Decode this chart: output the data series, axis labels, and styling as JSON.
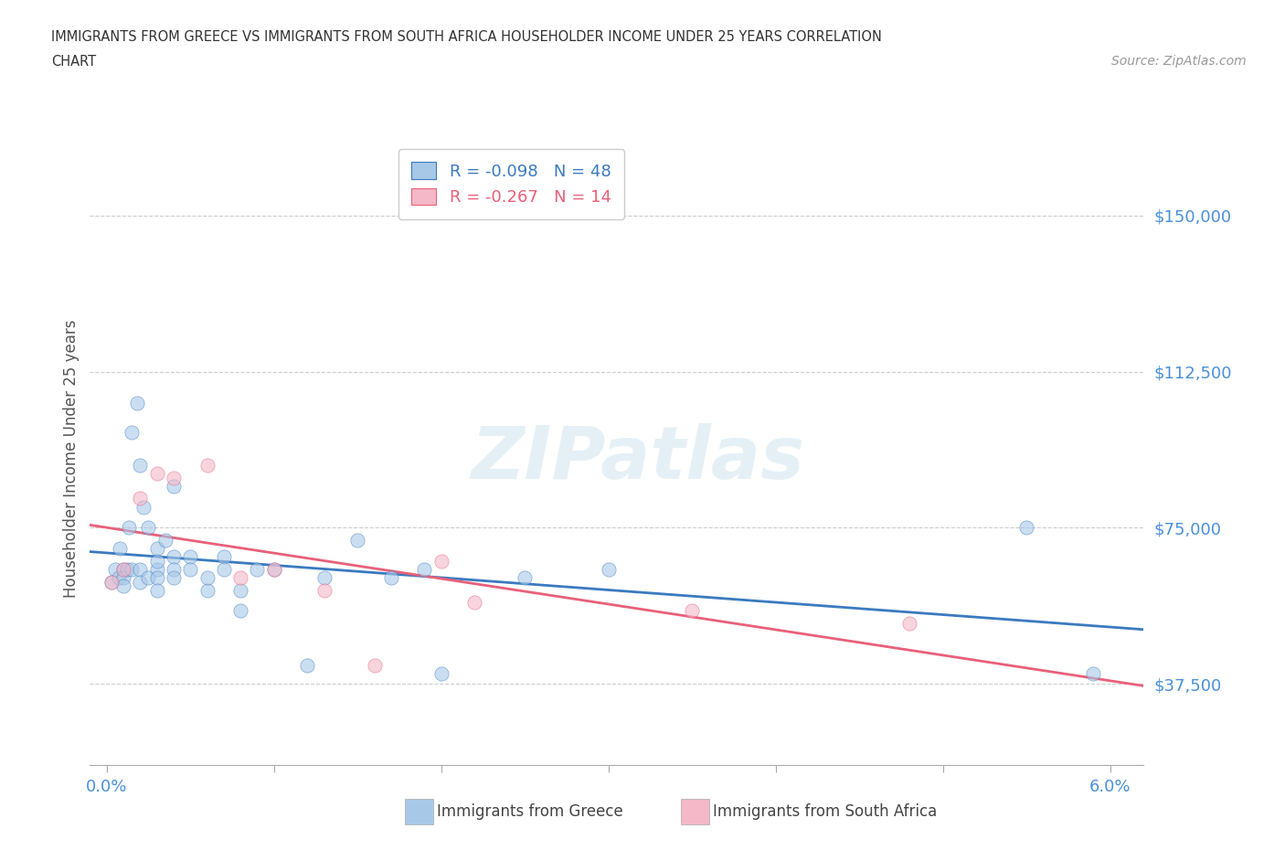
{
  "title_line1": "IMMIGRANTS FROM GREECE VS IMMIGRANTS FROM SOUTH AFRICA HOUSEHOLDER INCOME UNDER 25 YEARS CORRELATION",
  "title_line2": "CHART",
  "source_text": "Source: ZipAtlas.com",
  "ylabel": "Householder Income Under 25 years",
  "xlim": [
    -0.001,
    0.062
  ],
  "ylim": [
    18000,
    165000
  ],
  "yticks": [
    37500,
    75000,
    112500,
    150000
  ],
  "ytick_labels": [
    "$37,500",
    "$75,000",
    "$112,500",
    "$150,000"
  ],
  "xticks": [
    0.0,
    0.01,
    0.02,
    0.03,
    0.04,
    0.05,
    0.06
  ],
  "xtick_labels": [
    "0.0%",
    "",
    "",
    "",
    "",
    "",
    "6.0%"
  ],
  "greece_R": -0.098,
  "greece_N": 48,
  "sa_R": -0.267,
  "sa_N": 14,
  "greece_color": "#a8c8e8",
  "sa_color": "#f4b8c8",
  "greece_line_color": "#3a7abf",
  "sa_line_color": "#e8607a",
  "tick_color": "#4a90d9",
  "background_color": "#ffffff",
  "watermark": "ZIPatlas",
  "greece_x": [
    0.0003,
    0.0005,
    0.0007,
    0.0008,
    0.001,
    0.001,
    0.001,
    0.0012,
    0.0013,
    0.0015,
    0.0015,
    0.0018,
    0.002,
    0.002,
    0.002,
    0.0022,
    0.0025,
    0.0025,
    0.003,
    0.003,
    0.003,
    0.003,
    0.003,
    0.0035,
    0.004,
    0.004,
    0.004,
    0.004,
    0.005,
    0.005,
    0.006,
    0.006,
    0.007,
    0.007,
    0.008,
    0.008,
    0.009,
    0.01,
    0.012,
    0.013,
    0.015,
    0.017,
    0.019,
    0.02,
    0.025,
    0.03,
    0.055,
    0.059
  ],
  "greece_y": [
    62000,
    65000,
    63000,
    70000,
    65000,
    63000,
    61000,
    65000,
    75000,
    98000,
    65000,
    105000,
    65000,
    90000,
    62000,
    80000,
    75000,
    63000,
    70000,
    65000,
    67000,
    63000,
    60000,
    72000,
    85000,
    68000,
    65000,
    63000,
    68000,
    65000,
    60000,
    63000,
    68000,
    65000,
    60000,
    55000,
    65000,
    65000,
    42000,
    63000,
    72000,
    63000,
    65000,
    40000,
    63000,
    65000,
    75000,
    40000
  ],
  "sa_x": [
    0.0003,
    0.001,
    0.002,
    0.003,
    0.004,
    0.006,
    0.008,
    0.01,
    0.013,
    0.016,
    0.02,
    0.022,
    0.035,
    0.048
  ],
  "sa_y": [
    62000,
    65000,
    82000,
    88000,
    87000,
    90000,
    63000,
    65000,
    60000,
    42000,
    67000,
    57000,
    55000,
    52000
  ]
}
